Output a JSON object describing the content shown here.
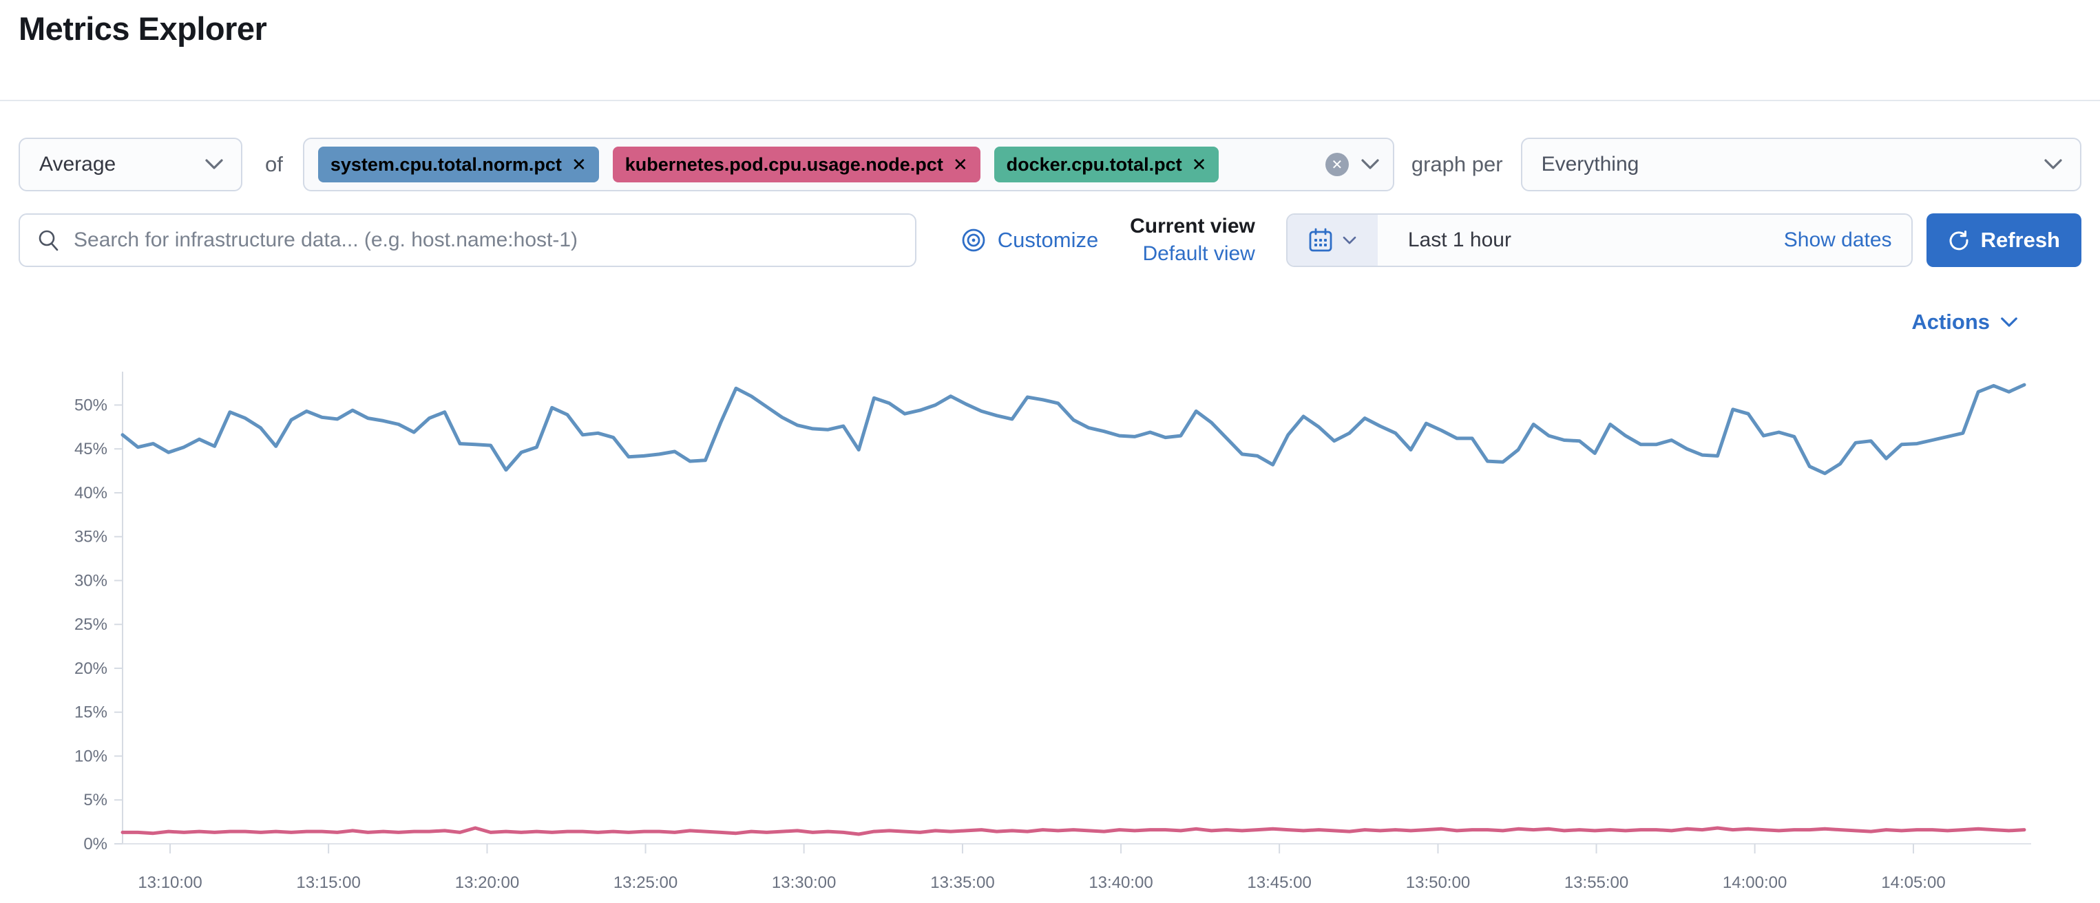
{
  "page": {
    "title": "Metrics Explorer"
  },
  "colors": {
    "primary": "#2e6ec7",
    "series_blue": "#6092C0",
    "series_pink": "#D36086",
    "badge_green": "#54B399"
  },
  "icons": [
    "chevron-down",
    "search",
    "eye",
    "calendar",
    "refresh",
    "clear-circle",
    "remove-x"
  ],
  "toolbar": {
    "aggregation": {
      "value": "Average"
    },
    "of_label": "of",
    "metrics": [
      {
        "label": "system.cpu.total.norm.pct",
        "color": "#6092C0",
        "remove": "✕"
      },
      {
        "label": "kubernetes.pod.cpu.usage.node.pct",
        "color": "#D36086",
        "remove": "✕"
      },
      {
        "label": "docker.cpu.total.pct",
        "color": "#54B399",
        "remove": "✕"
      }
    ],
    "clear_label": "✕",
    "graph_per_label": "graph per",
    "group_by": {
      "value": "Everything"
    }
  },
  "searchbar": {
    "placeholder": "Search for infrastructure data... (e.g. host.name:host-1)",
    "value": "",
    "customize_label": "Customize",
    "current_view_label": "Current view",
    "view_value": "Default view",
    "time_range_value": "Last 1 hour",
    "show_dates_label": "Show dates",
    "refresh_label": "Refresh"
  },
  "actions_label": "Actions",
  "chart_data": {
    "type": "line",
    "title": "",
    "xlabel": "",
    "ylabel": "",
    "grid": false,
    "legend": "none",
    "ylim": [
      0,
      53.8
    ],
    "y_ticks": [
      {
        "label": "0%",
        "v": 0
      },
      {
        "label": "5%",
        "v": 5
      },
      {
        "label": "10%",
        "v": 10
      },
      {
        "label": "15%",
        "v": 15
      },
      {
        "label": "20%",
        "v": 20
      },
      {
        "label": "25%",
        "v": 25
      },
      {
        "label": "30%",
        "v": 30
      },
      {
        "label": "35%",
        "v": 35
      },
      {
        "label": "40%",
        "v": 40
      },
      {
        "label": "45%",
        "v": 45
      },
      {
        "label": "50%",
        "v": 50
      }
    ],
    "x_axis": {
      "start": "13:08:30",
      "end": "14:08:30"
    },
    "x_ticks": [
      {
        "label": "13:10:00",
        "f": 0.025
      },
      {
        "label": "13:15:00",
        "f": 0.1083
      },
      {
        "label": "13:20:00",
        "f": 0.1917
      },
      {
        "label": "13:25:00",
        "f": 0.275
      },
      {
        "label": "13:30:00",
        "f": 0.3583
      },
      {
        "label": "13:35:00",
        "f": 0.4417
      },
      {
        "label": "13:40:00",
        "f": 0.525
      },
      {
        "label": "13:45:00",
        "f": 0.6083
      },
      {
        "label": "13:50:00",
        "f": 0.6917
      },
      {
        "label": "13:55:00",
        "f": 0.775
      },
      {
        "label": "14:00:00",
        "f": 0.8583
      },
      {
        "label": "14:05:00",
        "f": 0.9417
      }
    ],
    "series": [
      {
        "name": "system.cpu.total.norm.pct (avg)",
        "color": "#6092C0",
        "values": [
          46.6,
          45.2,
          45.6,
          44.6,
          45.2,
          46.1,
          45.3,
          49.2,
          48.5,
          47.4,
          45.3,
          48.3,
          49.3,
          48.6,
          48.4,
          49.4,
          48.5,
          48.2,
          47.8,
          46.9,
          48.5,
          49.2,
          45.6,
          45.5,
          45.4,
          42.6,
          44.6,
          45.2,
          49.7,
          48.9,
          46.6,
          46.8,
          46.3,
          44.1,
          44.2,
          44.4,
          44.7,
          43.6,
          43.7,
          48.0,
          51.9,
          51.0,
          49.8,
          48.6,
          47.7,
          47.3,
          47.2,
          47.6,
          44.9,
          50.8,
          50.2,
          49.0,
          49.4,
          50.0,
          51.0,
          50.1,
          49.3,
          48.8,
          48.4,
          50.9,
          50.6,
          50.2,
          48.3,
          47.4,
          47.0,
          46.5,
          46.4,
          46.9,
          46.3,
          46.5,
          49.3,
          48.0,
          46.2,
          44.4,
          44.2,
          43.2,
          46.6,
          48.7,
          47.5,
          45.9,
          46.8,
          48.5,
          47.6,
          46.8,
          44.9,
          47.9,
          47.1,
          46.2,
          46.2,
          43.6,
          43.5,
          44.9,
          47.8,
          46.5,
          46.0,
          45.9,
          44.5,
          47.8,
          46.5,
          45.5,
          45.5,
          46.0,
          45.0,
          44.3,
          44.2,
          49.5,
          49.0,
          46.5,
          46.9,
          46.4,
          43.0,
          42.2,
          43.3,
          45.7,
          45.9,
          43.9,
          45.5,
          45.6,
          46.0,
          46.4,
          46.8,
          51.5,
          52.2,
          51.5,
          52.3
        ]
      },
      {
        "name": "kubernetes.pod.cpu.usage.node.pct (avg)",
        "color": "#D36086",
        "values": [
          1.3,
          1.3,
          1.2,
          1.4,
          1.3,
          1.4,
          1.3,
          1.4,
          1.4,
          1.3,
          1.4,
          1.3,
          1.4,
          1.4,
          1.3,
          1.5,
          1.3,
          1.4,
          1.3,
          1.4,
          1.4,
          1.5,
          1.3,
          1.8,
          1.3,
          1.4,
          1.3,
          1.4,
          1.3,
          1.4,
          1.4,
          1.3,
          1.4,
          1.3,
          1.4,
          1.4,
          1.3,
          1.5,
          1.4,
          1.3,
          1.2,
          1.4,
          1.3,
          1.4,
          1.5,
          1.3,
          1.4,
          1.3,
          1.1,
          1.4,
          1.5,
          1.4,
          1.3,
          1.5,
          1.4,
          1.5,
          1.6,
          1.4,
          1.5,
          1.4,
          1.6,
          1.5,
          1.6,
          1.5,
          1.4,
          1.6,
          1.5,
          1.6,
          1.6,
          1.5,
          1.7,
          1.5,
          1.6,
          1.5,
          1.6,
          1.7,
          1.6,
          1.5,
          1.6,
          1.5,
          1.4,
          1.6,
          1.5,
          1.6,
          1.5,
          1.6,
          1.7,
          1.5,
          1.6,
          1.6,
          1.5,
          1.7,
          1.6,
          1.7,
          1.5,
          1.6,
          1.5,
          1.6,
          1.5,
          1.6,
          1.6,
          1.5,
          1.7,
          1.6,
          1.8,
          1.6,
          1.7,
          1.6,
          1.5,
          1.6,
          1.6,
          1.7,
          1.6,
          1.5,
          1.4,
          1.6,
          1.5,
          1.6,
          1.6,
          1.5,
          1.6,
          1.7,
          1.6,
          1.5,
          1.6
        ]
      }
    ]
  }
}
